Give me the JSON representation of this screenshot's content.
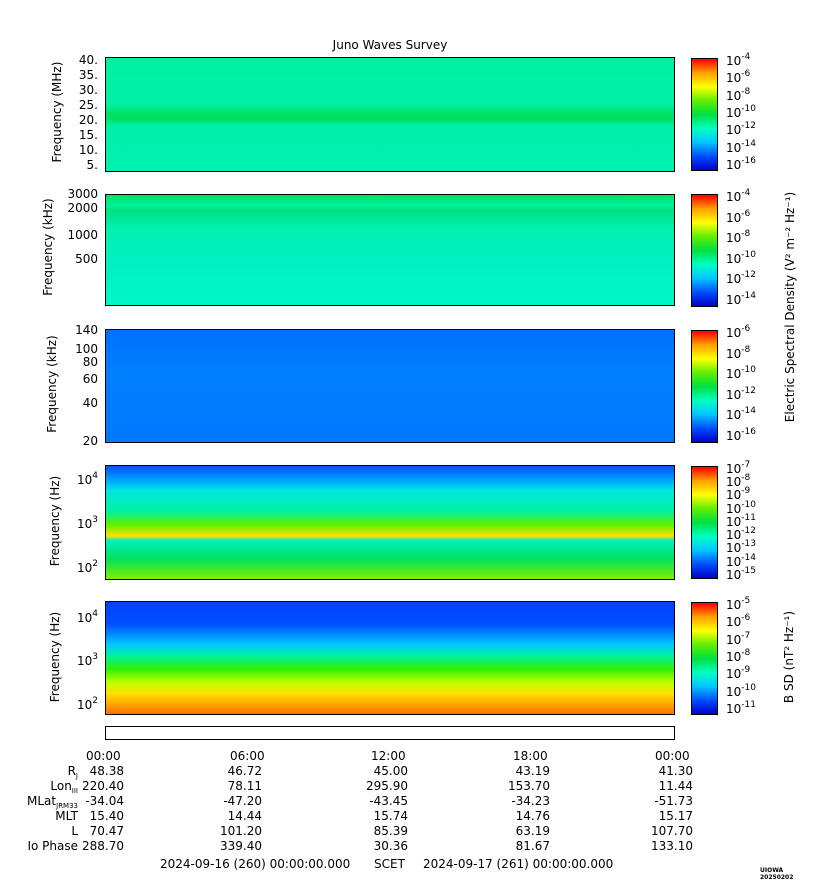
{
  "title": "Juno Waves Survey",
  "panels": [
    {
      "ylabel": "Frequency (MHz)",
      "yticks": [
        "40.",
        "35.",
        "30.",
        "25.",
        "20.",
        "15.",
        "10.",
        "5."
      ],
      "cbticks": [
        "-4",
        "-6",
        "-8",
        "-10",
        "-12",
        "-14",
        "-16"
      ]
    },
    {
      "ylabel": "Frequency (kHz)",
      "yticks": [
        "3000",
        "2000",
        "1000",
        "500"
      ],
      "cbticks": [
        "-4",
        "-6",
        "-8",
        "-10",
        "-12",
        "-14"
      ]
    },
    {
      "ylabel": "Frequency (kHz)",
      "yticks": [
        "140",
        "100",
        "80",
        "60",
        "40",
        "20"
      ],
      "cbticks": [
        "-6",
        "-8",
        "-10",
        "-12",
        "-14",
        "-16"
      ]
    },
    {
      "ylabel": "Frequency (Hz)",
      "yticks_exp": [
        "4",
        "3",
        "2"
      ],
      "cbticks": [
        "-7",
        "-8",
        "-9",
        "-10",
        "-11",
        "-12",
        "-13",
        "-14",
        "-15"
      ]
    },
    {
      "ylabel": "Frequency (Hz)",
      "yticks_exp": [
        "4",
        "3",
        "2"
      ],
      "cbticks": [
        "-5",
        "-6",
        "-7",
        "-8",
        "-9",
        "-10",
        "-11"
      ]
    }
  ],
  "colorbar_labels": {
    "electric": "Electric Spectral Density (V² m⁻² Hz⁻¹)",
    "magnetic": "B SD (nT² Hz⁻¹)"
  },
  "cb_base": "10",
  "colormap": [
    "#0000c8",
    "#0050ff",
    "#00c8ff",
    "#00ffc0",
    "#00e040",
    "#60f000",
    "#ffff00",
    "#ffa000",
    "#ff0000"
  ],
  "time_labels": [
    "00:00",
    "06:00",
    "12:00",
    "18:00",
    "00:00"
  ],
  "ephemeris": [
    {
      "label": "R",
      "sub": "J",
      "values": [
        "48.38",
        "46.72",
        "45.00",
        "43.19",
        "41.30"
      ]
    },
    {
      "label": "Lon",
      "sub": "III",
      "values": [
        "220.40",
        "78.11",
        "295.90",
        "153.70",
        "11.44"
      ]
    },
    {
      "label": "MLat",
      "sub": "JRM33",
      "values": [
        "-34.04",
        "-47.20",
        "-43.45",
        "-34.23",
        "-51.73"
      ]
    },
    {
      "label": "MLT",
      "sub": "",
      "values": [
        "15.40",
        "14.44",
        "15.74",
        "14.76",
        "15.17"
      ]
    },
    {
      "label": "L",
      "sub": "",
      "values": [
        "70.47",
        "101.20",
        "85.39",
        "63.19",
        "107.70"
      ]
    },
    {
      "label": "Io Phase",
      "sub": "",
      "values": [
        "288.70",
        "339.40",
        "30.36",
        "81.67",
        "133.10"
      ]
    }
  ],
  "footer": {
    "start": "2024-09-16 (260) 00:00:00.000",
    "scet": "SCET",
    "end": "2024-09-17 (261) 00:00:00.000",
    "stamp": "UIOWA 20250202"
  }
}
